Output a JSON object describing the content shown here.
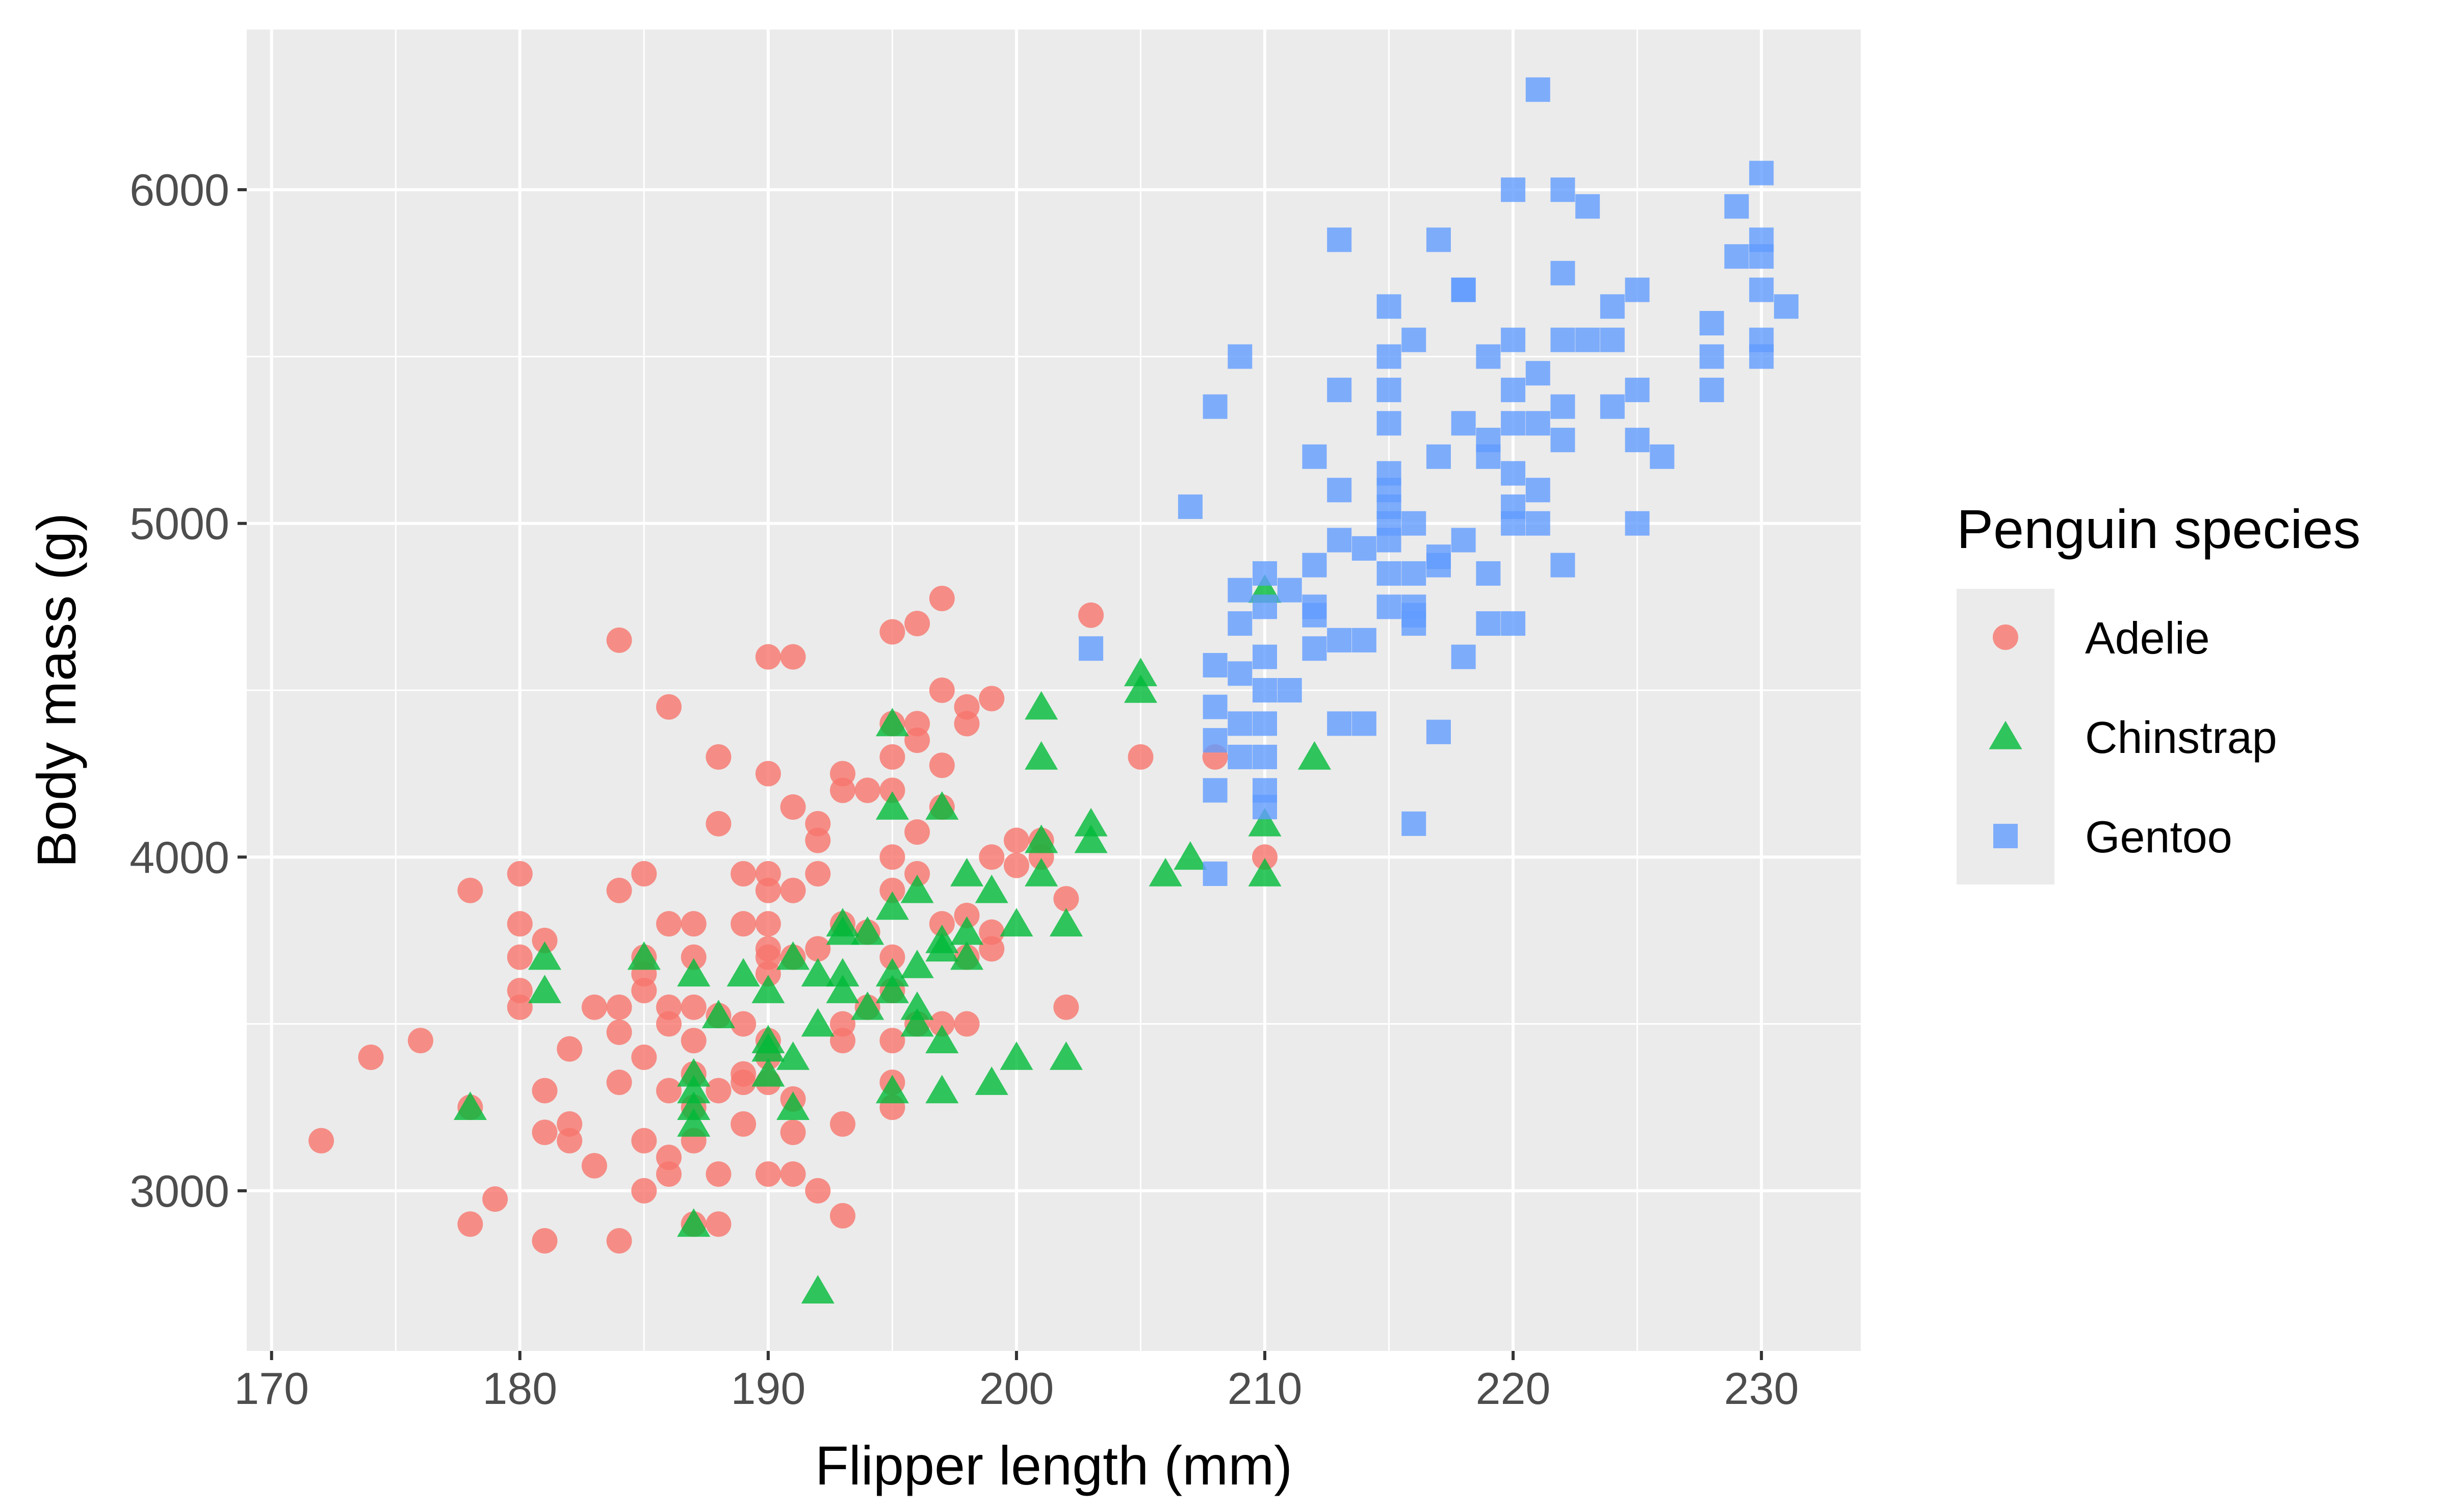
{
  "chart_data": {
    "type": "scatter",
    "title": "",
    "xlabel": "Flipper length (mm)",
    "ylabel": "Body mass (g)",
    "xlim": [
      169,
      234
    ],
    "ylim": [
      2520,
      6480
    ],
    "x_ticks": [
      170,
      180,
      190,
      200,
      210,
      220,
      230
    ],
    "y_ticks": [
      3000,
      4000,
      5000,
      6000
    ],
    "x_tick_labels": [
      "170",
      "180",
      "190",
      "200",
      "210",
      "220",
      "230"
    ],
    "y_tick_labels": [
      "3000",
      "4000",
      "5000",
      "6000"
    ],
    "grid": true,
    "background": "#ebebeb",
    "legend": {
      "title": "Penguin species",
      "placement": "right"
    },
    "series": [
      {
        "name": "Adelie",
        "color": "#f8766d",
        "marker": "circle",
        "points": [
          [
            172,
            3150
          ],
          [
            174,
            3400
          ],
          [
            176,
            3450
          ],
          [
            178,
            3900
          ],
          [
            178,
            3250
          ],
          [
            178,
            2900
          ],
          [
            179,
            2975
          ],
          [
            180,
            3950
          ],
          [
            180,
            3800
          ],
          [
            180,
            3700
          ],
          [
            180,
            3600
          ],
          [
            180,
            3550
          ],
          [
            181,
            3750
          ],
          [
            181,
            3300
          ],
          [
            181,
            3175
          ],
          [
            181,
            2850
          ],
          [
            182,
            3425
          ],
          [
            182,
            3200
          ],
          [
            182,
            3150
          ],
          [
            183,
            3550
          ],
          [
            183,
            3075
          ],
          [
            184,
            4650
          ],
          [
            184,
            3900
          ],
          [
            184,
            3550
          ],
          [
            184,
            3475
          ],
          [
            184,
            3325
          ],
          [
            184,
            2850
          ],
          [
            185,
            3950
          ],
          [
            185,
            3700
          ],
          [
            185,
            3650
          ],
          [
            185,
            3600
          ],
          [
            185,
            3400
          ],
          [
            185,
            3150
          ],
          [
            185,
            3000
          ],
          [
            186,
            4450
          ],
          [
            186,
            3800
          ],
          [
            186,
            3550
          ],
          [
            186,
            3500
          ],
          [
            186,
            3300
          ],
          [
            186,
            3100
          ],
          [
            186,
            3050
          ],
          [
            187,
            3800
          ],
          [
            187,
            3700
          ],
          [
            187,
            3550
          ],
          [
            187,
            3450
          ],
          [
            187,
            3350
          ],
          [
            187,
            3250
          ],
          [
            187,
            3150
          ],
          [
            187,
            2900
          ],
          [
            188,
            4300
          ],
          [
            188,
            4100
          ],
          [
            188,
            3525
          ],
          [
            188,
            3300
          ],
          [
            188,
            3050
          ],
          [
            188,
            2900
          ],
          [
            189,
            3950
          ],
          [
            189,
            3800
          ],
          [
            189,
            3500
          ],
          [
            189,
            3350
          ],
          [
            189,
            3325
          ],
          [
            189,
            3200
          ],
          [
            190,
            4600
          ],
          [
            190,
            4250
          ],
          [
            190,
            3950
          ],
          [
            190,
            3900
          ],
          [
            190,
            3800
          ],
          [
            190,
            3725
          ],
          [
            190,
            3700
          ],
          [
            190,
            3650
          ],
          [
            190,
            3450
          ],
          [
            190,
            3400
          ],
          [
            190,
            3325
          ],
          [
            190,
            3050
          ],
          [
            191,
            4600
          ],
          [
            191,
            4150
          ],
          [
            191,
            3900
          ],
          [
            191,
            3700
          ],
          [
            191,
            3275
          ],
          [
            191,
            3175
          ],
          [
            191,
            3050
          ],
          [
            192,
            4100
          ],
          [
            192,
            4050
          ],
          [
            192,
            3950
          ],
          [
            192,
            3725
          ],
          [
            192,
            3000
          ],
          [
            193,
            4250
          ],
          [
            193,
            4200
          ],
          [
            193,
            3800
          ],
          [
            193,
            3500
          ],
          [
            193,
            3450
          ],
          [
            193,
            3200
          ],
          [
            193,
            2925
          ],
          [
            194,
            4200
          ],
          [
            194,
            3775
          ],
          [
            194,
            3550
          ],
          [
            195,
            4675
          ],
          [
            195,
            4400
          ],
          [
            195,
            4300
          ],
          [
            195,
            4200
          ],
          [
            195,
            4000
          ],
          [
            195,
            3900
          ],
          [
            195,
            3700
          ],
          [
            195,
            3600
          ],
          [
            195,
            3450
          ],
          [
            195,
            3325
          ],
          [
            195,
            3250
          ],
          [
            196,
            4700
          ],
          [
            196,
            4400
          ],
          [
            196,
            4350
          ],
          [
            196,
            4075
          ],
          [
            196,
            3950
          ],
          [
            196,
            3500
          ],
          [
            197,
            4775
          ],
          [
            197,
            4500
          ],
          [
            197,
            4275
          ],
          [
            197,
            4150
          ],
          [
            197,
            3800
          ],
          [
            197,
            3500
          ],
          [
            198,
            4450
          ],
          [
            198,
            4400
          ],
          [
            198,
            3825
          ],
          [
            198,
            3700
          ],
          [
            198,
            3500
          ],
          [
            199,
            4475
          ],
          [
            199,
            4000
          ],
          [
            199,
            3775
          ],
          [
            199,
            3725
          ],
          [
            200,
            4050
          ],
          [
            200,
            3975
          ],
          [
            201,
            4000
          ],
          [
            201,
            4050
          ],
          [
            202,
            3875
          ],
          [
            202,
            3550
          ],
          [
            203,
            4725
          ],
          [
            205,
            4300
          ],
          [
            208,
            4300
          ],
          [
            210,
            4000
          ]
        ]
      },
      {
        "name": "Chinstrap",
        "color": "#00ba38",
        "marker": "triangle",
        "points": [
          [
            178,
            3250
          ],
          [
            181,
            3700
          ],
          [
            181,
            3600
          ],
          [
            185,
            3700
          ],
          [
            187,
            3650
          ],
          [
            187,
            3350
          ],
          [
            187,
            3300
          ],
          [
            187,
            3250
          ],
          [
            187,
            3200
          ],
          [
            187,
            2900
          ],
          [
            188,
            3525
          ],
          [
            189,
            3650
          ],
          [
            190,
            3600
          ],
          [
            190,
            3450
          ],
          [
            190,
            3425
          ],
          [
            190,
            3350
          ],
          [
            191,
            3700
          ],
          [
            191,
            3400
          ],
          [
            191,
            3250
          ],
          [
            192,
            3650
          ],
          [
            192,
            3500
          ],
          [
            192,
            2700
          ],
          [
            193,
            3800
          ],
          [
            193,
            3775
          ],
          [
            193,
            3650
          ],
          [
            193,
            3600
          ],
          [
            194,
            3775
          ],
          [
            194,
            3550
          ],
          [
            195,
            4400
          ],
          [
            195,
            4150
          ],
          [
            195,
            3850
          ],
          [
            195,
            3650
          ],
          [
            195,
            3600
          ],
          [
            195,
            3300
          ],
          [
            196,
            3900
          ],
          [
            196,
            3675
          ],
          [
            196,
            3550
          ],
          [
            196,
            3500
          ],
          [
            197,
            4150
          ],
          [
            197,
            3750
          ],
          [
            197,
            3725
          ],
          [
            197,
            3450
          ],
          [
            197,
            3300
          ],
          [
            198,
            3950
          ],
          [
            198,
            3775
          ],
          [
            198,
            3700
          ],
          [
            199,
            3900
          ],
          [
            199,
            3325
          ],
          [
            200,
            3800
          ],
          [
            200,
            3400
          ],
          [
            201,
            4450
          ],
          [
            201,
            4300
          ],
          [
            201,
            4050
          ],
          [
            201,
            3950
          ],
          [
            202,
            3800
          ],
          [
            202,
            3400
          ],
          [
            203,
            4100
          ],
          [
            203,
            4050
          ],
          [
            205,
            4550
          ],
          [
            205,
            4500
          ],
          [
            206,
            3950
          ],
          [
            207,
            4000
          ],
          [
            210,
            4800
          ],
          [
            210,
            4100
          ],
          [
            210,
            3950
          ],
          [
            212,
            4300
          ]
        ]
      },
      {
        "name": "Gentoo",
        "color": "#619cff",
        "marker": "square",
        "points": [
          [
            203,
            4625
          ],
          [
            207,
            5050
          ],
          [
            208,
            5350
          ],
          [
            208,
            4575
          ],
          [
            208,
            4450
          ],
          [
            208,
            4350
          ],
          [
            208,
            4200
          ],
          [
            208,
            3950
          ],
          [
            209,
            5500
          ],
          [
            209,
            4800
          ],
          [
            209,
            4700
          ],
          [
            209,
            4550
          ],
          [
            209,
            4400
          ],
          [
            209,
            4300
          ],
          [
            210,
            4850
          ],
          [
            210,
            4750
          ],
          [
            210,
            4600
          ],
          [
            210,
            4500
          ],
          [
            210,
            4400
          ],
          [
            210,
            4300
          ],
          [
            210,
            4200
          ],
          [
            210,
            4150
          ],
          [
            211,
            4800
          ],
          [
            211,
            4500
          ],
          [
            212,
            5200
          ],
          [
            212,
            4875
          ],
          [
            212,
            4750
          ],
          [
            212,
            4725
          ],
          [
            212,
            4625
          ],
          [
            213,
            5850
          ],
          [
            213,
            5400
          ],
          [
            213,
            5100
          ],
          [
            213,
            4950
          ],
          [
            213,
            4650
          ],
          [
            213,
            4400
          ],
          [
            214,
            4925
          ],
          [
            214,
            4650
          ],
          [
            214,
            4400
          ],
          [
            215,
            5650
          ],
          [
            215,
            5500
          ],
          [
            215,
            5400
          ],
          [
            215,
            5300
          ],
          [
            215,
            5150
          ],
          [
            215,
            5100
          ],
          [
            215,
            5050
          ],
          [
            215,
            5000
          ],
          [
            215,
            4950
          ],
          [
            215,
            4850
          ],
          [
            215,
            4750
          ],
          [
            216,
            5550
          ],
          [
            216,
            5000
          ],
          [
            216,
            4850
          ],
          [
            216,
            4750
          ],
          [
            216,
            4725
          ],
          [
            216,
            4700
          ],
          [
            216,
            4100
          ],
          [
            217,
            5850
          ],
          [
            217,
            5200
          ],
          [
            217,
            4900
          ],
          [
            217,
            4875
          ],
          [
            217,
            4375
          ],
          [
            218,
            5700
          ],
          [
            218,
            5700
          ],
          [
            218,
            5300
          ],
          [
            218,
            4950
          ],
          [
            218,
            4600
          ],
          [
            219,
            5500
          ],
          [
            219,
            5250
          ],
          [
            219,
            5200
          ],
          [
            219,
            4850
          ],
          [
            219,
            4700
          ],
          [
            220,
            6000
          ],
          [
            220,
            5550
          ],
          [
            220,
            5400
          ],
          [
            220,
            5300
          ],
          [
            220,
            5150
          ],
          [
            220,
            5050
          ],
          [
            220,
            5000
          ],
          [
            220,
            4700
          ],
          [
            221,
            6300
          ],
          [
            221,
            5450
          ],
          [
            221,
            5300
          ],
          [
            221,
            5100
          ],
          [
            221,
            5000
          ],
          [
            222,
            6000
          ],
          [
            222,
            5750
          ],
          [
            222,
            5550
          ],
          [
            222,
            5350
          ],
          [
            222,
            5250
          ],
          [
            222,
            4875
          ],
          [
            223,
            5950
          ],
          [
            223,
            5550
          ],
          [
            224,
            5650
          ],
          [
            224,
            5550
          ],
          [
            224,
            5350
          ],
          [
            225,
            5700
          ],
          [
            225,
            5400
          ],
          [
            225,
            5250
          ],
          [
            225,
            5000
          ],
          [
            226,
            5200
          ],
          [
            228,
            5600
          ],
          [
            228,
            5500
          ],
          [
            228,
            5400
          ],
          [
            229,
            5950
          ],
          [
            229,
            5800
          ],
          [
            230,
            6050
          ],
          [
            230,
            5850
          ],
          [
            230,
            5800
          ],
          [
            230,
            5700
          ],
          [
            230,
            5550
          ],
          [
            230,
            5500
          ],
          [
            231,
            5650
          ]
        ]
      }
    ]
  }
}
